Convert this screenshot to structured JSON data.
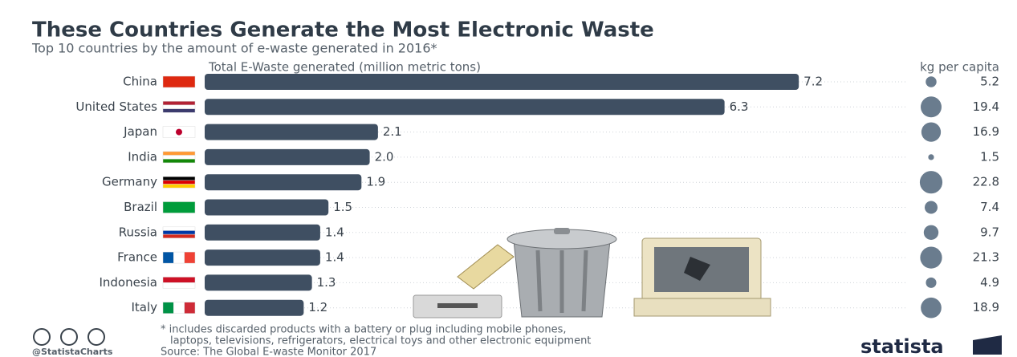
{
  "chart_data": {
    "type": "bar",
    "title": "These Countries Generate the Most Electronic Waste",
    "subtitle": "Top 10 countries by the amount of e-waste generated in 2016*",
    "categories": [
      "China",
      "United States",
      "Japan",
      "India",
      "Germany",
      "Brazil",
      "Russia",
      "France",
      "Indonesia",
      "Italy"
    ],
    "series": [
      {
        "name": "Total E-Waste generated (million metric tons)",
        "color": "#3f4f62",
        "values": [
          7.2,
          6.3,
          2.1,
          2.0,
          1.9,
          1.5,
          1.4,
          1.4,
          1.3,
          1.2
        ],
        "value_labels": [
          "7.2",
          "6.3",
          "2.1",
          "2.0",
          "1.9",
          "1.5",
          "1.4",
          "1.4",
          "1.3",
          "1.2"
        ]
      },
      {
        "name": "kg per capita",
        "color": "#6a7c8e",
        "values": [
          5.2,
          19.4,
          16.9,
          1.5,
          22.8,
          7.4,
          9.7,
          21.3,
          4.9,
          18.9
        ]
      }
    ],
    "footnote": [
      "* includes discarded products with a battery or plug including mobile phones,",
      "laptops, televisions, refrigerators, electrical toys and other electronic equipment"
    ],
    "handle": "@StatistaCharts",
    "source": "Source: The Global E-waste Monitor 2017",
    "brand": "statista"
  }
}
